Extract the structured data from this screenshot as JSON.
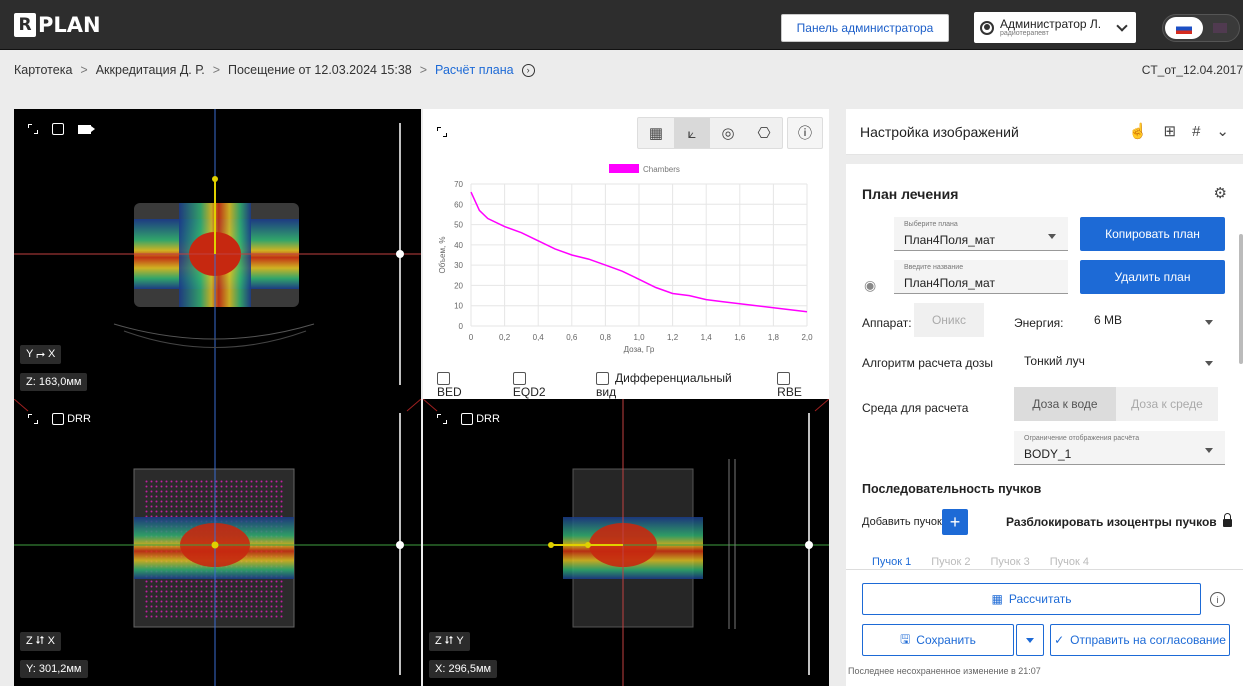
{
  "header": {
    "logo": "PLAN",
    "logo_mark": "R",
    "admin_button": "Панель администратора",
    "user_name": "Администратор Л.",
    "user_role": "радиотерапевт"
  },
  "breadcrumbs": {
    "items": [
      "Картотека",
      "Аккредитация Д. Р.",
      "Посещение от 12.03.2024 15:38"
    ],
    "active": "Расчёт плана",
    "series_id": "CT_от_12.04.2017"
  },
  "viewers": {
    "axial": {
      "orientation": "Y ⮣ X",
      "coord": "Z: 163,0мм"
    },
    "coronal": {
      "drr": "DRR",
      "orientation": "Z ⮃ X",
      "coord": "Y: 301,2мм"
    },
    "sagittal": {
      "drr": "DRR",
      "orientation": "Z ⮃ Y",
      "coord": "X: 296,5мм"
    }
  },
  "dvh": {
    "options": [
      "BED",
      "EQD2",
      "Дифференциальный вид",
      "RBE"
    ]
  },
  "chart_data": {
    "type": "line",
    "series": [
      {
        "name": "Chambers",
        "color": "#ff00ff",
        "x": [
          0,
          0.05,
          0.1,
          0.2,
          0.3,
          0.4,
          0.5,
          0.6,
          0.7,
          0.8,
          0.9,
          1.0,
          1.1,
          1.2,
          1.3,
          1.4,
          1.5,
          1.6,
          1.7,
          1.8,
          1.9,
          2.0
        ],
        "y": [
          66,
          57,
          53,
          49,
          46,
          42,
          38,
          35,
          33,
          30,
          27,
          23,
          19,
          16,
          15,
          13,
          12,
          11,
          10,
          9,
          8,
          7
        ]
      }
    ],
    "xlabel": "Доза, Гр",
    "ylabel": "Объем, %",
    "xlim": [
      0,
      2.0
    ],
    "ylim": [
      0,
      70
    ],
    "x_ticks": [
      "0",
      "0,2",
      "0,4",
      "0,6",
      "0,8",
      "1,0",
      "1,2",
      "1,4",
      "1,6",
      "1,8",
      "2,0"
    ],
    "y_ticks": [
      "0",
      "10",
      "20",
      "30",
      "40",
      "50",
      "60",
      "70"
    ],
    "grid": true,
    "legend": "top-center"
  },
  "right_panel": {
    "header": "Настройка изображений",
    "plan_title": "План лечения",
    "plan_select_label": "Выберите плана",
    "plan_select_value": "План4Поля_мат",
    "copy_plan": "Копировать план",
    "name_label": "Введите название",
    "name_value": "План4Поля_мат",
    "delete_plan": "Удалить план",
    "apparatus_label": "Аппарат:",
    "apparatus_value": "Оникс",
    "energy_label": "Энергия:",
    "energy_value": "6 МВ",
    "algo_label": "Алгоритм расчета дозы",
    "algo_value": "Тонкий луч",
    "medium_label": "Среда для расчета",
    "medium_water": "Доза к воде",
    "medium_medium": "Доза к среде",
    "limit_label": "Ограничение отображения расчёта",
    "limit_value": "BODY_1",
    "beams_title": "Последовательность пучков",
    "add_beam": "Добавить пучок",
    "unlock": "Разблокировать изоцентры пучков",
    "beam_tabs": [
      "Пучок 1",
      "Пучок 2",
      "Пучок 3",
      "Пучок 4"
    ],
    "calc": "Рассчитать",
    "save": "Сохранить",
    "send": "Отправить на согласование",
    "last_change": "Последнее несохраненное изменение в 21:07"
  }
}
